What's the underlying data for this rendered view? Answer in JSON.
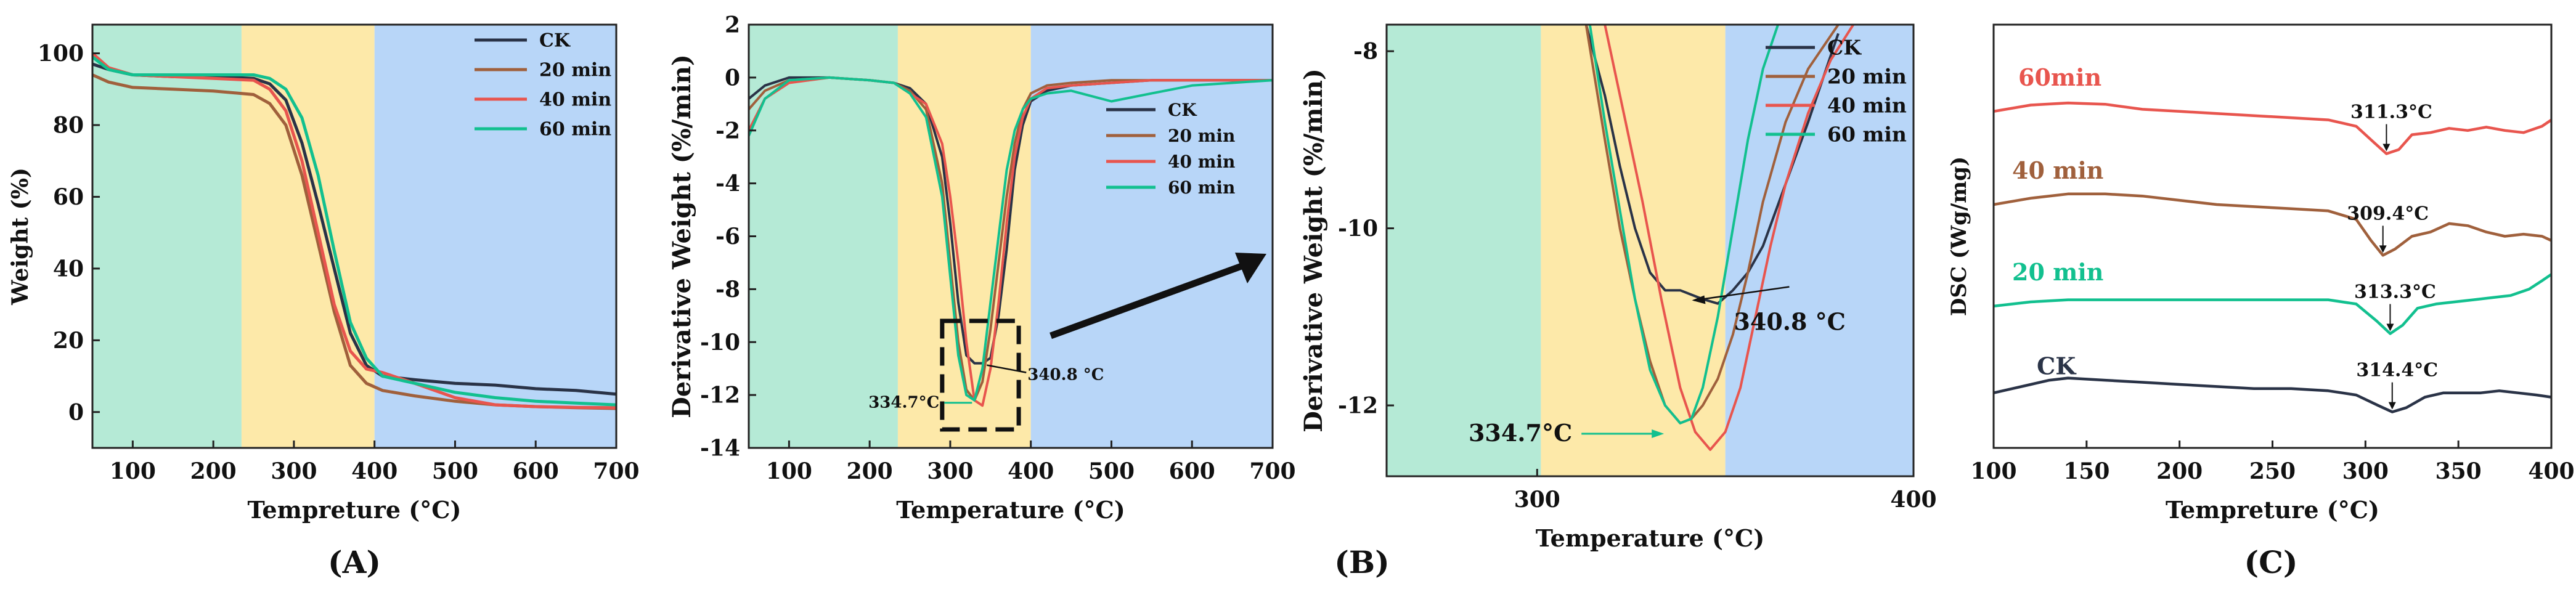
{
  "colors": {
    "CK": "#2a3347",
    "20 min": "#a0603c",
    "40 min": "#e8554e",
    "60 min": "#12c08f",
    "band_green": "#b5ead6",
    "band_yellow": "#fde9a9",
    "band_blue": "#b8d6f8"
  },
  "panel_letters": {
    "A": "(A)",
    "B": "(B)",
    "C": "(C)"
  },
  "chart_data": [
    {
      "id": "A",
      "type": "line",
      "title": "",
      "xlabel": "Tempreture (°C)",
      "ylabel": "Weight (%)",
      "xlim": [
        50,
        700
      ],
      "ylim": [
        -10,
        108
      ],
      "xticks": [
        100,
        200,
        300,
        400,
        500,
        600,
        700
      ],
      "yticks": [
        0,
        20,
        40,
        60,
        80,
        100
      ],
      "background_bands": [
        {
          "x": [
            50,
            235
          ],
          "color": "band_green"
        },
        {
          "x": [
            235,
            400
          ],
          "color": "band_yellow"
        },
        {
          "x": [
            400,
            700
          ],
          "color": "band_blue"
        }
      ],
      "legend": [
        "CK",
        "20 min",
        "40 min",
        "60 min"
      ],
      "series": [
        {
          "name": "CK",
          "x": [
            50,
            70,
            100,
            150,
            200,
            250,
            270,
            290,
            310,
            330,
            350,
            370,
            390,
            410,
            450,
            500,
            550,
            600,
            650,
            700
          ],
          "values": [
            97,
            95.5,
            94,
            93.5,
            93.5,
            93,
            91.5,
            87,
            75,
            58,
            40,
            22,
            13,
            10,
            9,
            8,
            7.5,
            6.5,
            6,
            5
          ]
        },
        {
          "name": "20 min",
          "x": [
            50,
            70,
            100,
            150,
            200,
            250,
            270,
            290,
            310,
            330,
            350,
            370,
            390,
            410,
            450,
            500,
            550,
            600,
            650,
            700
          ],
          "values": [
            94,
            92,
            90.5,
            90,
            89.5,
            88.5,
            86,
            80,
            66,
            47,
            28,
            13,
            8,
            6,
            4.5,
            3,
            2,
            1.5,
            1.2,
            1
          ]
        },
        {
          "name": "40 min",
          "x": [
            50,
            70,
            100,
            150,
            200,
            250,
            270,
            290,
            310,
            330,
            350,
            370,
            390,
            410,
            450,
            500,
            550,
            600,
            650,
            700
          ],
          "values": [
            100,
            96,
            94,
            93.5,
            93,
            92.5,
            90,
            84,
            70,
            50,
            30,
            17,
            12,
            11,
            8,
            4,
            2,
            1.5,
            1.3,
            1.2
          ]
        },
        {
          "name": "60 min",
          "x": [
            50,
            70,
            100,
            150,
            200,
            250,
            270,
            290,
            310,
            330,
            350,
            370,
            390,
            410,
            450,
            500,
            550,
            600,
            650,
            700
          ],
          "values": [
            99,
            95.5,
            94,
            94,
            94,
            94,
            93,
            90,
            82,
            66,
            45,
            25,
            15,
            10,
            8,
            5.5,
            4,
            3,
            2.5,
            2
          ]
        }
      ]
    },
    {
      "id": "B1",
      "type": "line",
      "title": "",
      "xlabel": "Temperature (°C)",
      "ylabel": "Derivative Weight  (%/min)",
      "xlim": [
        50,
        700
      ],
      "ylim": [
        -14,
        2
      ],
      "xticks": [
        100,
        200,
        300,
        400,
        500,
        600,
        700
      ],
      "yticks": [
        2,
        0,
        -2,
        -4,
        -6,
        -8,
        -10,
        -12,
        -14
      ],
      "background_bands": [
        {
          "x": [
            50,
            235
          ],
          "color": "band_green"
        },
        {
          "x": [
            235,
            400
          ],
          "color": "band_yellow"
        },
        {
          "x": [
            400,
            700
          ],
          "color": "band_blue"
        }
      ],
      "legend": [
        "CK",
        "20 min",
        "40 min",
        "60 min"
      ],
      "annotations": [
        {
          "text": "340.8 °C",
          "x": 340.8,
          "y": -10.8
        },
        {
          "text": "334.7°C",
          "x": 334.7,
          "y": -12.2
        }
      ],
      "zoom_box": {
        "x": [
          290,
          385
        ],
        "y": [
          -9.2,
          -13.3
        ]
      },
      "series": [
        {
          "name": "CK",
          "x": [
            50,
            70,
            100,
            150,
            200,
            230,
            250,
            270,
            290,
            300,
            310,
            320,
            330,
            340,
            350,
            360,
            370,
            380,
            390,
            400,
            420,
            450,
            500,
            550,
            600,
            650,
            700
          ],
          "values": [
            -0.8,
            -0.3,
            0,
            0,
            -0.1,
            -0.2,
            -0.4,
            -1.0,
            -3.0,
            -5.5,
            -8.5,
            -10.5,
            -10.8,
            -10.8,
            -10.6,
            -9.0,
            -6.5,
            -3.5,
            -1.8,
            -0.9,
            -0.5,
            -0.3,
            -0.2,
            -0.1,
            -0.1,
            -0.1,
            -0.1
          ]
        },
        {
          "name": "20 min",
          "x": [
            50,
            70,
            100,
            150,
            200,
            230,
            250,
            270,
            290,
            300,
            310,
            320,
            330,
            340,
            350,
            360,
            370,
            380,
            390,
            400,
            420,
            450,
            500,
            550,
            600,
            650,
            700
          ],
          "values": [
            -1.2,
            -0.5,
            -0.1,
            0,
            -0.1,
            -0.2,
            -0.5,
            -1.2,
            -4.0,
            -7.0,
            -10.0,
            -11.8,
            -12.2,
            -11.5,
            -9.5,
            -7.0,
            -4.5,
            -2.5,
            -1.2,
            -0.6,
            -0.3,
            -0.2,
            -0.1,
            -0.1,
            -0.1,
            -0.1,
            -0.1
          ]
        },
        {
          "name": "40 min",
          "x": [
            50,
            70,
            100,
            150,
            200,
            230,
            250,
            270,
            290,
            300,
            310,
            320,
            330,
            340,
            350,
            360,
            370,
            380,
            390,
            400,
            420,
            450,
            500,
            550,
            600,
            650,
            700
          ],
          "values": [
            -2.0,
            -0.8,
            -0.2,
            0,
            -0.1,
            -0.2,
            -0.6,
            -1.0,
            -2.5,
            -4.5,
            -7.0,
            -10.0,
            -12.2,
            -12.4,
            -11.0,
            -8.5,
            -5.5,
            -3.0,
            -1.5,
            -0.8,
            -0.4,
            -0.3,
            -0.2,
            -0.1,
            -0.1,
            -0.1,
            -0.1
          ]
        },
        {
          "name": "60 min",
          "x": [
            50,
            70,
            100,
            150,
            200,
            230,
            250,
            270,
            290,
            300,
            310,
            320,
            330,
            340,
            350,
            360,
            370,
            380,
            390,
            400,
            420,
            450,
            500,
            550,
            600,
            650,
            700
          ],
          "values": [
            -2.2,
            -0.8,
            -0.1,
            0,
            -0.1,
            -0.2,
            -0.6,
            -1.5,
            -4.5,
            -7.5,
            -10.5,
            -12.0,
            -12.2,
            -11.0,
            -8.5,
            -6.0,
            -3.5,
            -2.0,
            -1.2,
            -0.8,
            -0.6,
            -0.5,
            -0.9,
            -0.6,
            -0.3,
            -0.2,
            -0.1
          ]
        }
      ]
    },
    {
      "id": "B2",
      "type": "line",
      "title": "",
      "xlabel": "Temperature (°C)",
      "ylabel": "Derivative Weight  (%/min)",
      "xlim": [
        260,
        400
      ],
      "ylim": [
        -12.8,
        -7.7
      ],
      "xticks": [
        300,
        400
      ],
      "yticks": [
        -8,
        -10,
        -12
      ],
      "background_bands": [
        {
          "x": [
            260,
            301
          ],
          "color": "band_green"
        },
        {
          "x": [
            301,
            350
          ],
          "color": "band_yellow"
        },
        {
          "x": [
            350,
            400
          ],
          "color": "band_blue"
        }
      ],
      "legend": [
        "CK",
        "20 min",
        "40 min",
        "60 min"
      ],
      "annotations": [
        {
          "text": "340.8 °C",
          "x": 340.8,
          "y": -10.8
        },
        {
          "text": "334.7°C",
          "x": 334.7,
          "y": -12.25
        }
      ],
      "series": [
        {
          "name": "CK",
          "x": [
            313,
            318,
            322,
            326,
            330,
            334,
            338,
            341,
            344,
            348,
            352,
            356,
            360,
            366,
            372,
            380
          ],
          "values": [
            -7.7,
            -8.5,
            -9.3,
            -10.0,
            -10.5,
            -10.7,
            -10.7,
            -10.75,
            -10.8,
            -10.85,
            -10.7,
            -10.5,
            -10.2,
            -9.5,
            -8.8,
            -7.8
          ]
        },
        {
          "name": "20 min",
          "x": [
            313,
            318,
            322,
            326,
            330,
            334,
            338,
            341,
            344,
            348,
            352,
            356,
            360,
            366,
            372,
            380
          ],
          "values": [
            -7.7,
            -9.0,
            -10.0,
            -10.8,
            -11.5,
            -12.0,
            -12.2,
            -12.15,
            -12.0,
            -11.7,
            -11.2,
            -10.5,
            -9.7,
            -8.8,
            -8.2,
            -7.7
          ]
        },
        {
          "name": "40 min",
          "x": [
            318,
            323,
            328,
            333,
            338,
            342,
            346,
            350,
            354,
            358,
            362,
            366,
            372,
            378,
            384
          ],
          "values": [
            -7.7,
            -8.7,
            -9.7,
            -10.8,
            -11.8,
            -12.3,
            -12.5,
            -12.3,
            -11.8,
            -11.0,
            -10.2,
            -9.5,
            -8.7,
            -8.1,
            -7.7
          ]
        },
        {
          "name": "60 min",
          "x": [
            314,
            318,
            322,
            326,
            330,
            334,
            338,
            341,
            344,
            348,
            352,
            356,
            360,
            364
          ],
          "values": [
            -7.7,
            -8.8,
            -9.8,
            -10.8,
            -11.6,
            -12.0,
            -12.2,
            -12.15,
            -11.8,
            -11.0,
            -10.0,
            -9.0,
            -8.2,
            -7.7
          ]
        }
      ]
    },
    {
      "id": "C",
      "type": "line",
      "title": "",
      "xlabel": "Tempreture (°C)",
      "ylabel": "DSC (Wg/mg)",
      "xlim": [
        100,
        400
      ],
      "ylim": [
        0,
        1
      ],
      "xticks": [
        100,
        150,
        200,
        250,
        300,
        350,
        400
      ],
      "yticks": [],
      "curve_labels": [
        "60min",
        "40 min",
        "20 min",
        "CK"
      ],
      "annotations": [
        {
          "series": "60min",
          "text": "311.3°C",
          "x": 311.3
        },
        {
          "series": "40 min",
          "text": "309.4°C",
          "x": 309.4
        },
        {
          "series": "20 min",
          "text": "313.3°C",
          "x": 313.3
        },
        {
          "series": "CK",
          "text": "314.4°C",
          "x": 314.4
        }
      ],
      "series": [
        {
          "name": "60min",
          "color_key": "40 min",
          "x": [
            100,
            120,
            140,
            160,
            180,
            200,
            220,
            240,
            260,
            280,
            295,
            305,
            311.3,
            318,
            325,
            335,
            345,
            355,
            365,
            375,
            385,
            395,
            400
          ],
          "values": [
            0.795,
            0.81,
            0.815,
            0.812,
            0.8,
            0.795,
            0.79,
            0.785,
            0.78,
            0.775,
            0.76,
            0.72,
            0.695,
            0.705,
            0.74,
            0.745,
            0.755,
            0.75,
            0.758,
            0.75,
            0.745,
            0.76,
            0.775
          ]
        },
        {
          "name": "40 min",
          "color_key": "20 min",
          "x": [
            100,
            120,
            140,
            160,
            180,
            200,
            220,
            240,
            260,
            280,
            295,
            303,
            309.4,
            316,
            325,
            335,
            345,
            355,
            365,
            375,
            385,
            395,
            400
          ],
          "values": [
            0.575,
            0.59,
            0.6,
            0.6,
            0.595,
            0.585,
            0.575,
            0.57,
            0.565,
            0.56,
            0.54,
            0.49,
            0.455,
            0.47,
            0.5,
            0.51,
            0.53,
            0.525,
            0.51,
            0.5,
            0.505,
            0.5,
            0.49
          ]
        },
        {
          "name": "20 min",
          "color_key": "60 min",
          "x": [
            100,
            120,
            140,
            160,
            180,
            200,
            220,
            240,
            260,
            280,
            295,
            306,
            313.3,
            320,
            328,
            338,
            348,
            358,
            368,
            378,
            388,
            395,
            400
          ],
          "values": [
            0.335,
            0.345,
            0.35,
            0.35,
            0.35,
            0.35,
            0.35,
            0.35,
            0.35,
            0.35,
            0.34,
            0.3,
            0.27,
            0.29,
            0.33,
            0.34,
            0.345,
            0.35,
            0.355,
            0.36,
            0.375,
            0.395,
            0.41
          ]
        },
        {
          "name": "CK",
          "color_key": "CK",
          "x": [
            100,
            110,
            120,
            130,
            140,
            160,
            180,
            200,
            220,
            240,
            260,
            280,
            295,
            307,
            314.4,
            322,
            332,
            342,
            352,
            362,
            372,
            382,
            392,
            400
          ],
          "values": [
            0.13,
            0.14,
            0.15,
            0.16,
            0.165,
            0.16,
            0.155,
            0.15,
            0.145,
            0.14,
            0.14,
            0.135,
            0.125,
            0.1,
            0.085,
            0.095,
            0.12,
            0.13,
            0.13,
            0.13,
            0.135,
            0.13,
            0.125,
            0.12
          ]
        }
      ]
    }
  ]
}
